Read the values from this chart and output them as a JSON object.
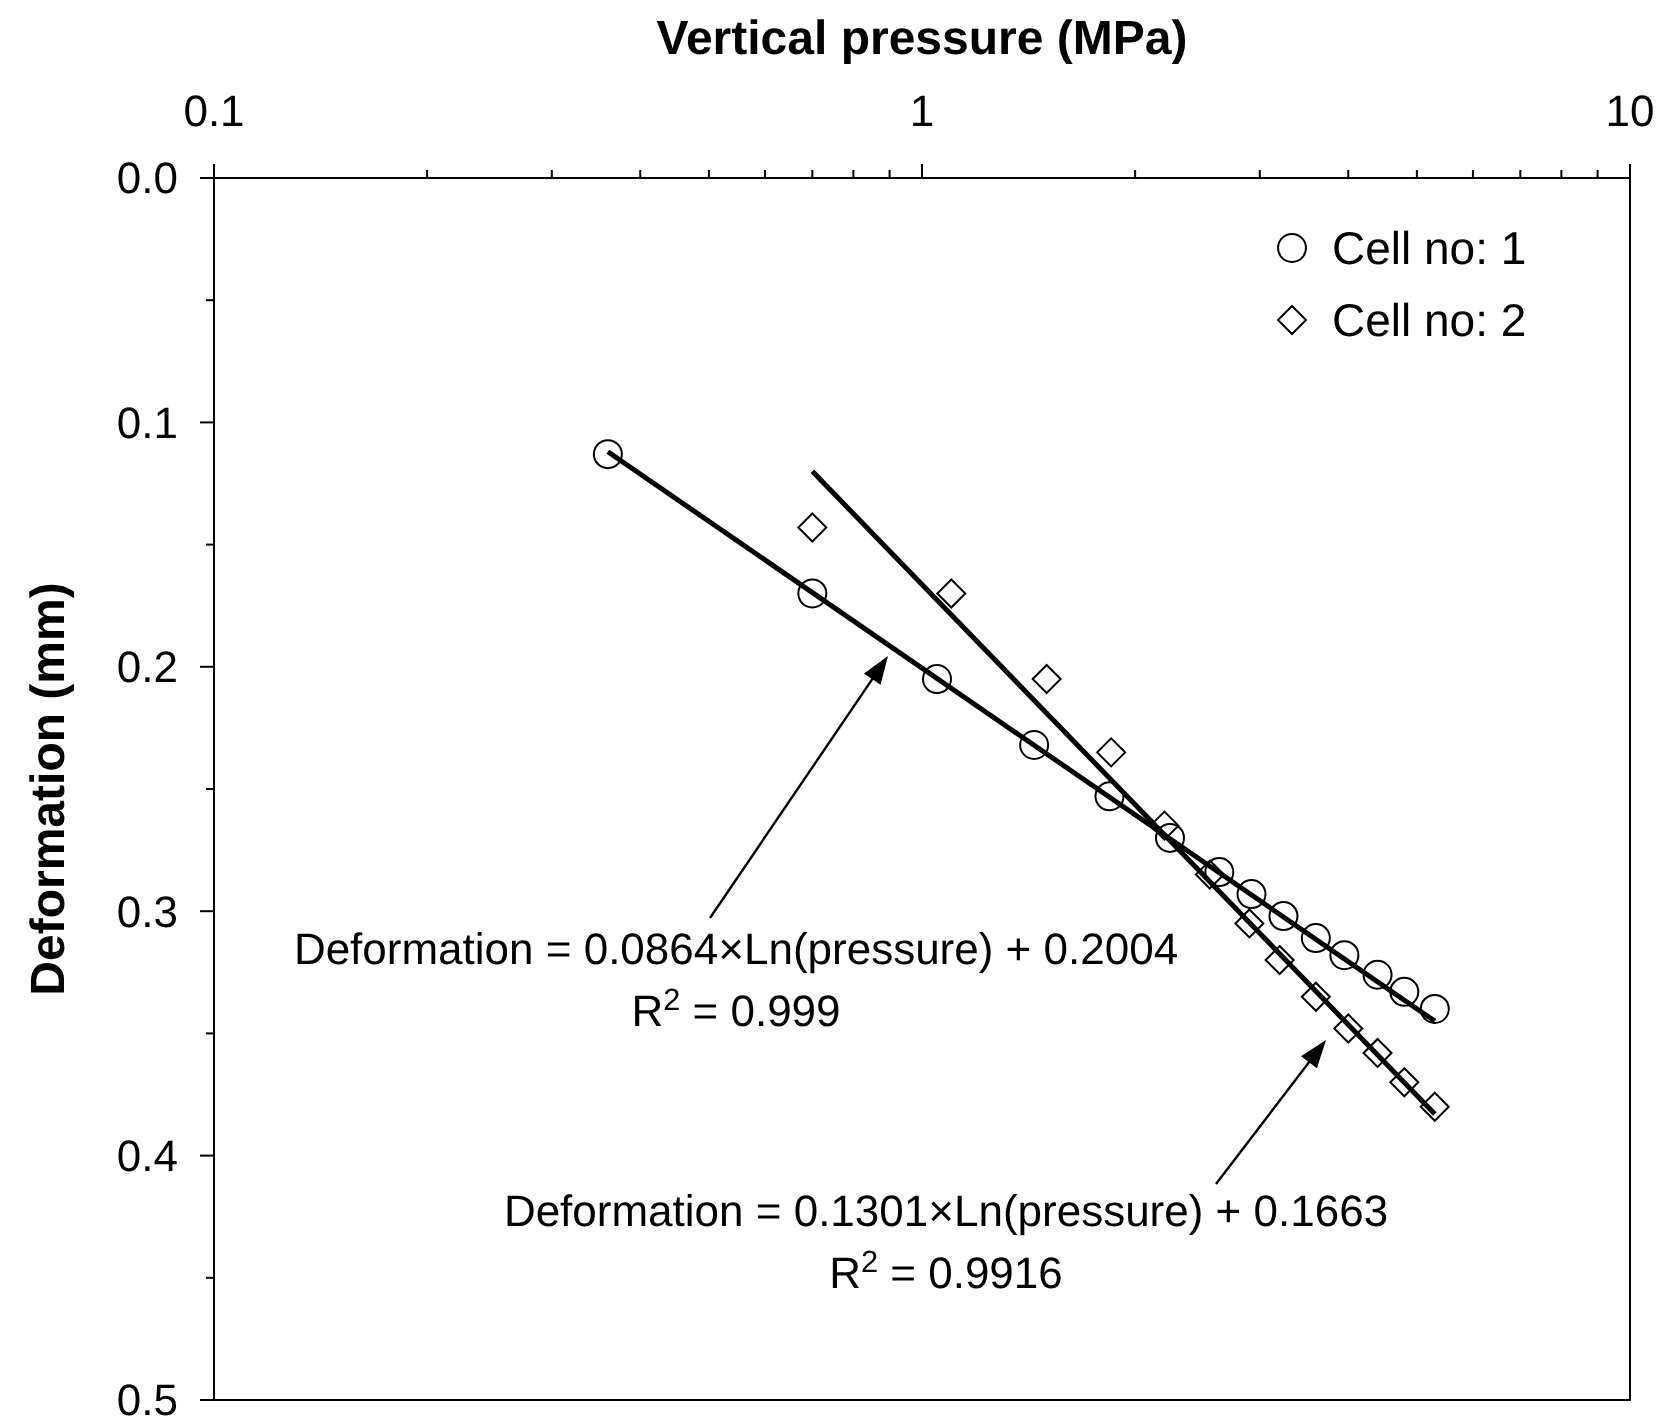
{
  "chart_data": {
    "type": "scatter",
    "xlabel": "Vertical pressure (MPa)",
    "ylabel": "Deformation (mm)",
    "log": "x",
    "xlim": [
      0.1,
      10
    ],
    "ylim": [
      0.5,
      0
    ],
    "xticks": [
      0.1,
      {
        "value": 0.2,
        "label": null
      },
      {
        "value": 0.3,
        "label": null
      },
      {
        "value": 0.4,
        "label": null
      },
      {
        "value": 0.5,
        "label": null
      },
      {
        "value": 0.6,
        "label": null
      },
      {
        "value": 0.7,
        "label": null
      },
      {
        "value": 0.8,
        "label": null
      },
      {
        "value": 0.9,
        "label": null
      },
      1,
      {
        "value": 2,
        "label": null
      },
      {
        "value": 3,
        "label": null
      },
      {
        "value": 4,
        "label": null
      },
      {
        "value": 5,
        "label": null
      },
      {
        "value": 6,
        "label": null
      },
      {
        "value": 7,
        "label": null
      },
      {
        "value": 8,
        "label": null
      },
      {
        "value": 9,
        "label": null
      },
      10
    ],
    "yticks": [
      {
        "value": 0,
        "label": "0.0"
      },
      {
        "value": 0.05,
        "label": null
      },
      0.1,
      {
        "value": 0.15,
        "label": null
      },
      0.2,
      {
        "value": 0.25,
        "label": null
      },
      0.3,
      {
        "value": 0.35,
        "label": null
      },
      0.4,
      {
        "value": 0.45,
        "label": null
      },
      0.5
    ],
    "grid": false,
    "legend": "top right",
    "series": [
      {
        "name": "Cell no: 1",
        "color": "#000000",
        "marker": "circle",
        "x": [
          0.36,
          0.7,
          1.05,
          1.44,
          1.84,
          2.24,
          2.63,
          2.92,
          3.24,
          3.6,
          3.95,
          4.4,
          4.8,
          5.3
        ],
        "values": [
          0.113,
          0.17,
          0.205,
          0.232,
          0.253,
          0.27,
          0.284,
          0.293,
          0.302,
          0.311,
          0.318,
          0.326,
          0.333,
          0.34
        ]
      },
      {
        "name": "Cell no: 2",
        "color": "#000000",
        "marker": "diamond",
        "x": [
          0.7,
          1.1,
          1.5,
          1.85,
          2.2,
          2.55,
          2.9,
          3.2,
          3.6,
          4.0,
          4.4,
          4.8,
          5.3
        ],
        "values": [
          0.143,
          0.17,
          0.205,
          0.235,
          0.265,
          0.285,
          0.305,
          0.32,
          0.335,
          0.348,
          0.358,
          0.37,
          0.38
        ]
      },
      {
        "type": "line",
        "color": "#000000",
        "marker": "none",
        "x": [
          0.36,
          5.3
        ],
        "values": [
          0.112,
          0.345
        ]
      },
      {
        "type": "line",
        "color": "#000000",
        "marker": "none",
        "x": [
          0.7,
          5.3
        ],
        "values": [
          0.12,
          0.383
        ]
      }
    ],
    "annotations": [
      "Deformation = 0.0864×Ln(pressure) + 0.2004\nR$^{2}$ = 0.999",
      "Deformation = 0.1301×Ln(pressure) + 0.1663\nR$^{2}$ = 0.9916"
    ]
  }
}
